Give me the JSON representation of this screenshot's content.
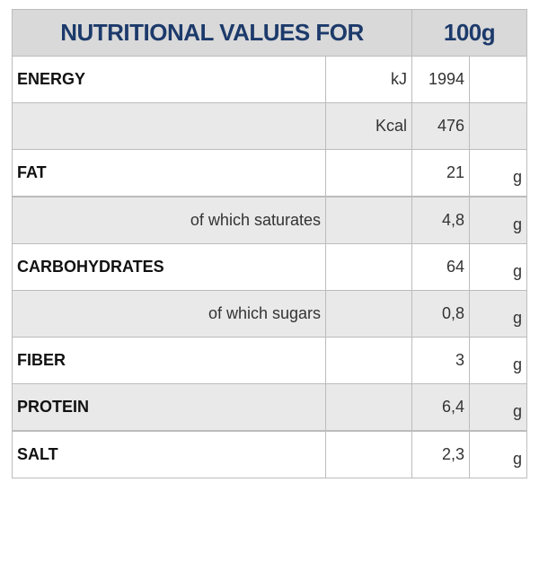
{
  "header": {
    "title": "NUTRITIONAL VALUES FOR",
    "amount": "100g"
  },
  "rows": [
    {
      "label": "ENERGY",
      "measure": "kJ",
      "value": "1994"
    },
    {
      "measure": "Kcal",
      "value": "476"
    },
    {
      "label": "FAT",
      "value": "21",
      "unit": "g"
    },
    {
      "sublabel": "of which saturates",
      "value": "4,8",
      "unit": "g"
    },
    {
      "label": "CARBOHYDRATES",
      "value": "64",
      "unit": "g"
    },
    {
      "sublabel": "of which sugars",
      "value": "0,8",
      "unit": "g"
    },
    {
      "label": "FIBER",
      "value": "3",
      "unit": "g"
    },
    {
      "label": "PROTEIN",
      "value": "6,4",
      "unit": "g"
    },
    {
      "label": "SALT",
      "value": "2,3",
      "unit": "g"
    }
  ]
}
